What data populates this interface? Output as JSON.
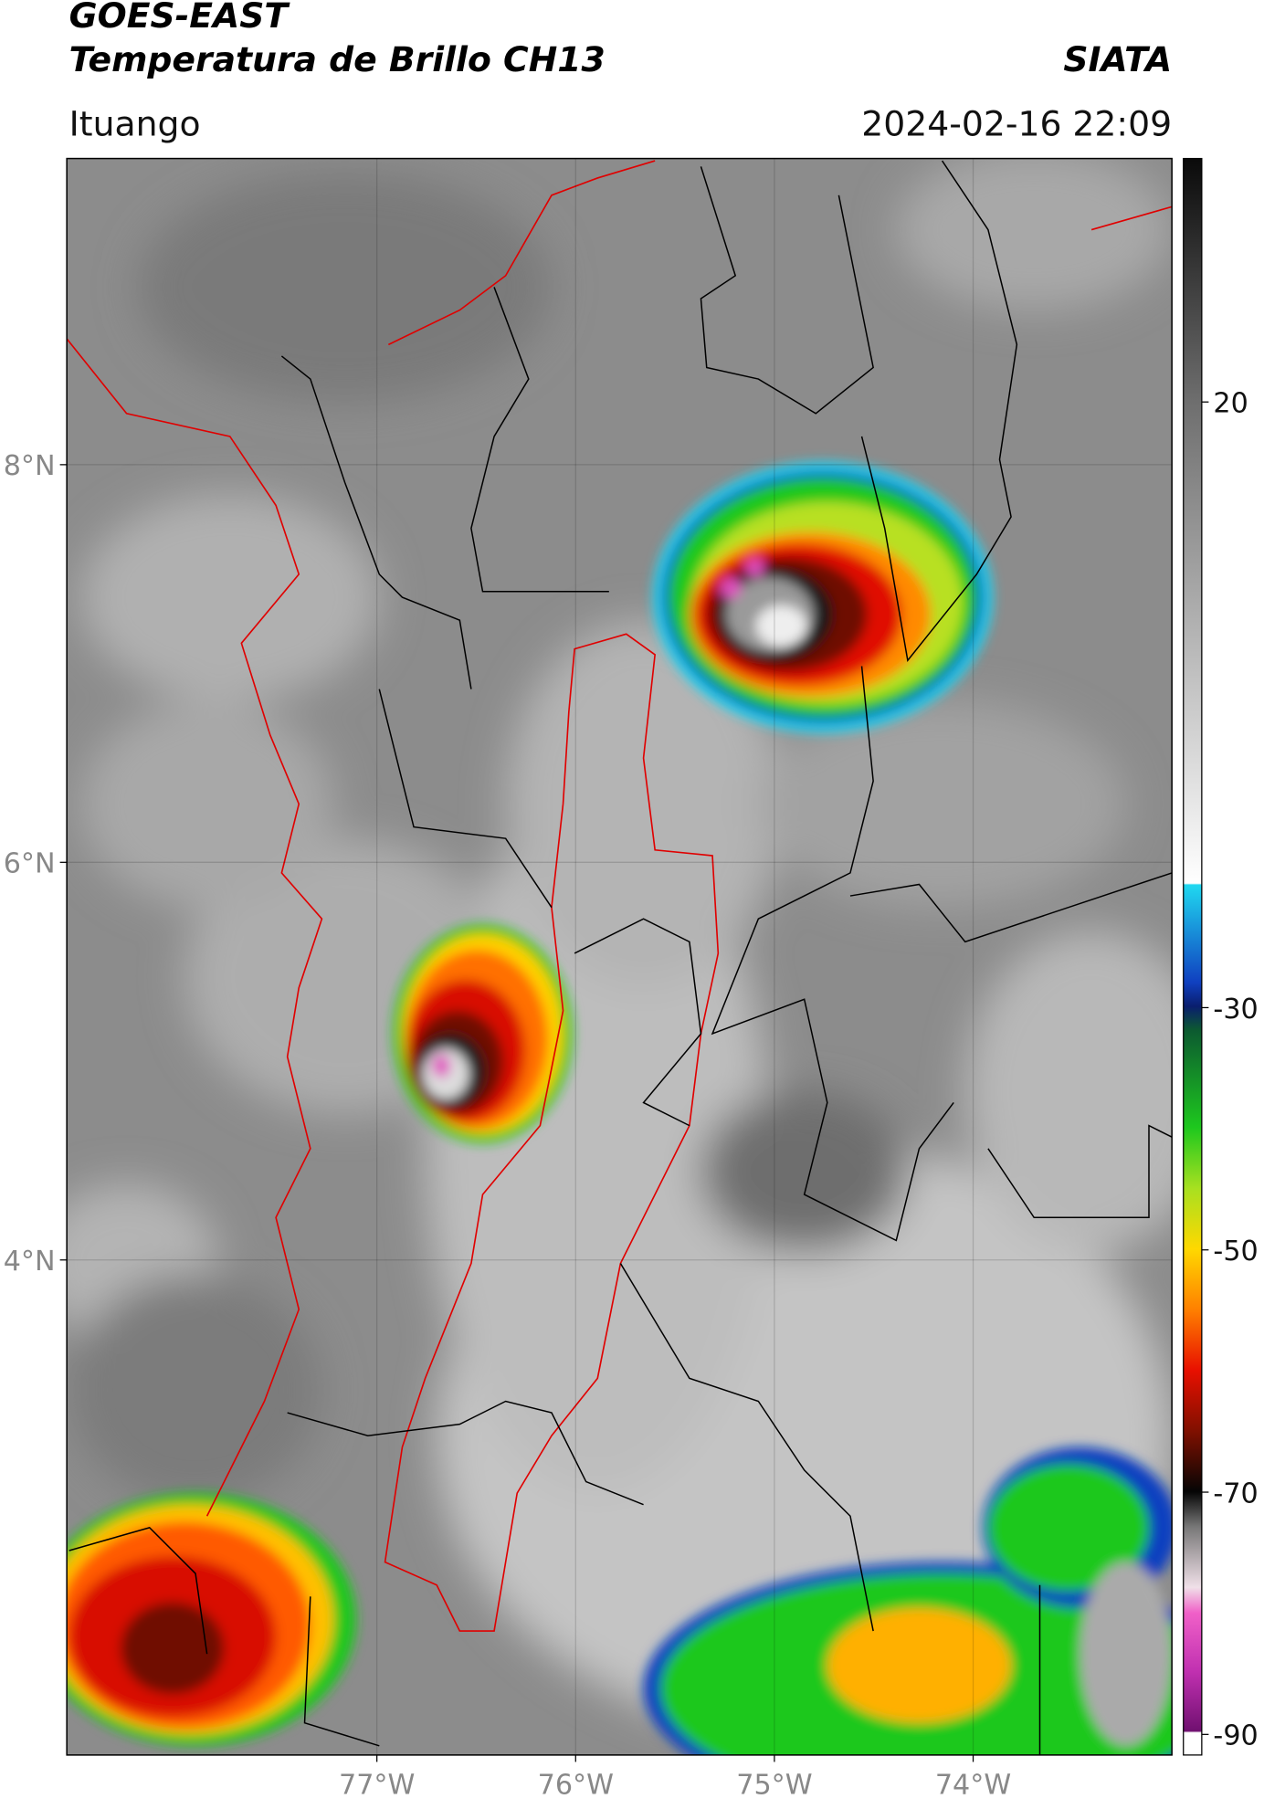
{
  "header": {
    "title": "GOES-EAST",
    "subtitle": "Temperatura de Brillo CH13",
    "source": "SIATA",
    "location": "Ituango",
    "timestamp": "2024-02-16 22:09"
  },
  "map": {
    "xlim": [
      -78.56,
      -73.0
    ],
    "ylim": [
      1.51,
      9.54
    ],
    "xticks": [
      {
        "value": -77,
        "label": "77°W"
      },
      {
        "value": -76,
        "label": "76°W"
      },
      {
        "value": -75,
        "label": "75°W"
      },
      {
        "value": -74,
        "label": "74°W"
      }
    ],
    "yticks": [
      {
        "value": 8,
        "label": "8°N"
      },
      {
        "value": 6,
        "label": "6°N"
      },
      {
        "value": 4,
        "label": "4°N"
      }
    ],
    "grid": true
  },
  "colorbar": {
    "lim": [
      -91.7,
      40.1
    ],
    "ticks": [
      20,
      -30,
      -50,
      -70,
      -90
    ]
  }
}
